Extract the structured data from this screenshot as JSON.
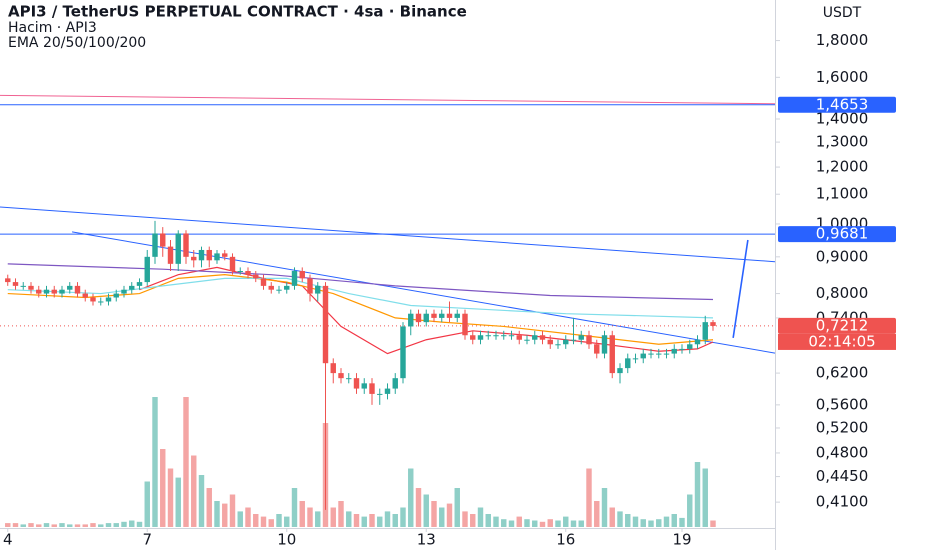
{
  "chart_data": {
    "type": "candlestick",
    "title": "API3 / TetherUS PERPETUAL CONTRACT · 4sa · Binance",
    "subtitle": "Hacim · API3",
    "indicator": "EMA 20/50/100/200",
    "y_axis_label": "USDT",
    "log_scale": true,
    "ylim": [
      0.369,
      2.05
    ],
    "yticks": [
      {
        "value": 1.8,
        "label": "1,8000"
      },
      {
        "value": 1.6,
        "label": "1,6000"
      },
      {
        "value": 1.4,
        "label": "1,4000"
      },
      {
        "value": 1.3,
        "label": "1,3000"
      },
      {
        "value": 1.2,
        "label": "1,2000"
      },
      {
        "value": 1.1,
        "label": "1,1000"
      },
      {
        "value": 1.0,
        "label": "1,0000"
      },
      {
        "value": 0.9,
        "label": "0,9000"
      },
      {
        "value": 0.8,
        "label": "0,8000"
      },
      {
        "value": 0.74,
        "label": "0,7400"
      },
      {
        "value": 0.62,
        "label": "0,6200"
      },
      {
        "value": 0.56,
        "label": "0,5600"
      },
      {
        "value": 0.52,
        "label": "0,5200"
      },
      {
        "value": 0.48,
        "label": "0,4800"
      },
      {
        "value": 0.445,
        "label": "0,4450"
      },
      {
        "value": 0.41,
        "label": "0,4100"
      }
    ],
    "xlim": [
      -1,
      99
    ],
    "xticks": [
      {
        "value": 0,
        "label": "4"
      },
      {
        "value": 18,
        "label": "7"
      },
      {
        "value": 36,
        "label": "10"
      },
      {
        "value": 54,
        "label": "13"
      },
      {
        "value": 72,
        "label": "16"
      },
      {
        "value": 87,
        "label": "19"
      }
    ],
    "up_color": "#26a69a",
    "down_color": "#ef5350",
    "up_volume_color": "#8fcfc7",
    "down_volume_color": "#f4a5a4",
    "candles": {
      "x": [
        0,
        1,
        2,
        3,
        4,
        5,
        6,
        7,
        8,
        9,
        10,
        11,
        12,
        13,
        14,
        15,
        16,
        17,
        18,
        19,
        20,
        21,
        22,
        23,
        24,
        25,
        26,
        27,
        28,
        29,
        30,
        31,
        32,
        33,
        34,
        35,
        36,
        37,
        38,
        39,
        40,
        41,
        42,
        43,
        44,
        45,
        46,
        47,
        48,
        49,
        50,
        51,
        52,
        53,
        54,
        55,
        56,
        57,
        58,
        59,
        60,
        61,
        62,
        63,
        64,
        65,
        66,
        67,
        68,
        69,
        70,
        71,
        72,
        73,
        74,
        75,
        76,
        77,
        78,
        79,
        80,
        81,
        82,
        83,
        84,
        85,
        86,
        87,
        88,
        89,
        90,
        91
      ],
      "open": [
        0.84,
        0.83,
        0.82,
        0.82,
        0.81,
        0.8,
        0.81,
        0.8,
        0.81,
        0.82,
        0.8,
        0.79,
        0.78,
        0.78,
        0.79,
        0.8,
        0.81,
        0.82,
        0.83,
        0.9,
        0.97,
        0.93,
        0.88,
        0.97,
        0.9,
        0.89,
        0.92,
        0.89,
        0.91,
        0.9,
        0.86,
        0.86,
        0.85,
        0.84,
        0.82,
        0.81,
        0.81,
        0.82,
        0.86,
        0.84,
        0.8,
        0.82,
        0.64,
        0.62,
        0.61,
        0.61,
        0.59,
        0.6,
        0.58,
        0.58,
        0.59,
        0.61,
        0.72,
        0.75,
        0.73,
        0.75,
        0.74,
        0.75,
        0.74,
        0.75,
        0.7,
        0.69,
        0.7,
        0.7,
        0.7,
        0.7,
        0.7,
        0.69,
        0.69,
        0.7,
        0.69,
        0.68,
        0.68,
        0.69,
        0.69,
        0.7,
        0.68,
        0.66,
        0.7,
        0.62,
        0.63,
        0.65,
        0.65,
        0.66,
        0.66,
        0.66,
        0.66,
        0.67,
        0.67,
        0.68,
        0.69,
        0.73
      ],
      "high": [
        0.85,
        0.84,
        0.83,
        0.83,
        0.82,
        0.82,
        0.82,
        0.82,
        0.83,
        0.83,
        0.81,
        0.8,
        0.79,
        0.8,
        0.81,
        0.82,
        0.83,
        0.84,
        0.92,
        1.01,
        0.99,
        0.95,
        0.98,
        0.98,
        0.92,
        0.93,
        0.93,
        0.92,
        0.92,
        0.91,
        0.87,
        0.87,
        0.86,
        0.85,
        0.83,
        0.82,
        0.83,
        0.87,
        0.87,
        0.85,
        0.83,
        0.83,
        0.65,
        0.63,
        0.62,
        0.62,
        0.61,
        0.61,
        0.59,
        0.6,
        0.62,
        0.73,
        0.76,
        0.76,
        0.76,
        0.76,
        0.76,
        0.78,
        0.76,
        0.76,
        0.71,
        0.71,
        0.71,
        0.71,
        0.71,
        0.71,
        0.71,
        0.7,
        0.71,
        0.71,
        0.7,
        0.69,
        0.7,
        0.74,
        0.71,
        0.71,
        0.69,
        0.71,
        0.71,
        0.64,
        0.66,
        0.66,
        0.67,
        0.67,
        0.67,
        0.67,
        0.68,
        0.68,
        0.69,
        0.7,
        0.745,
        0.735
      ],
      "low": [
        0.82,
        0.81,
        0.81,
        0.8,
        0.79,
        0.79,
        0.79,
        0.79,
        0.8,
        0.79,
        0.78,
        0.77,
        0.77,
        0.77,
        0.78,
        0.79,
        0.8,
        0.81,
        0.82,
        0.88,
        0.9,
        0.86,
        0.86,
        0.88,
        0.87,
        0.87,
        0.87,
        0.88,
        0.89,
        0.85,
        0.85,
        0.84,
        0.83,
        0.81,
        0.8,
        0.8,
        0.8,
        0.81,
        0.83,
        0.78,
        0.78,
        0.4,
        0.6,
        0.6,
        0.6,
        0.58,
        0.58,
        0.56,
        0.56,
        0.57,
        0.58,
        0.6,
        0.7,
        0.72,
        0.72,
        0.73,
        0.73,
        0.73,
        0.73,
        0.69,
        0.68,
        0.68,
        0.69,
        0.69,
        0.69,
        0.69,
        0.68,
        0.68,
        0.68,
        0.68,
        0.67,
        0.67,
        0.67,
        0.68,
        0.68,
        0.67,
        0.65,
        0.65,
        0.61,
        0.6,
        0.62,
        0.64,
        0.64,
        0.65,
        0.65,
        0.65,
        0.65,
        0.66,
        0.66,
        0.67,
        0.68,
        0.71
      ],
      "close": [
        0.83,
        0.82,
        0.82,
        0.81,
        0.8,
        0.81,
        0.8,
        0.81,
        0.82,
        0.8,
        0.79,
        0.78,
        0.78,
        0.79,
        0.8,
        0.81,
        0.82,
        0.83,
        0.9,
        0.97,
        0.93,
        0.88,
        0.97,
        0.9,
        0.89,
        0.92,
        0.89,
        0.91,
        0.9,
        0.86,
        0.86,
        0.85,
        0.84,
        0.82,
        0.81,
        0.81,
        0.82,
        0.86,
        0.84,
        0.8,
        0.82,
        0.64,
        0.62,
        0.61,
        0.61,
        0.59,
        0.6,
        0.58,
        0.58,
        0.59,
        0.61,
        0.72,
        0.75,
        0.73,
        0.75,
        0.74,
        0.75,
        0.74,
        0.75,
        0.7,
        0.69,
        0.7,
        0.7,
        0.7,
        0.7,
        0.7,
        0.69,
        0.69,
        0.7,
        0.69,
        0.68,
        0.68,
        0.69,
        0.69,
        0.7,
        0.68,
        0.66,
        0.7,
        0.62,
        0.63,
        0.65,
        0.65,
        0.66,
        0.66,
        0.66,
        0.66,
        0.67,
        0.67,
        0.68,
        0.69,
        0.73,
        0.7212
      ],
      "volume": [
        3,
        3,
        2,
        3,
        2,
        3,
        2,
        3,
        2,
        2,
        2,
        3,
        2,
        3,
        3,
        4,
        5,
        4,
        35,
        100,
        60,
        45,
        38,
        100,
        55,
        40,
        30,
        20,
        18,
        25,
        12,
        15,
        10,
        8,
        6,
        10,
        8,
        30,
        20,
        15,
        12,
        80,
        15,
        20,
        12,
        10,
        8,
        10,
        8,
        12,
        10,
        15,
        45,
        30,
        25,
        20,
        15,
        18,
        30,
        12,
        10,
        15,
        10,
        8,
        6,
        5,
        8,
        6,
        5,
        4,
        6,
        5,
        8,
        5,
        5,
        45,
        20,
        30,
        15,
        12,
        10,
        8,
        6,
        5,
        6,
        8,
        10,
        7,
        25,
        50,
        45,
        5
      ]
    },
    "series": [
      {
        "name": "EMA 20",
        "color": "#f23645",
        "x": [
          17,
          22,
          27,
          33,
          38,
          43,
          49,
          54,
          60,
          67,
          77,
          84,
          89,
          91
        ],
        "values": [
          0.81,
          0.85,
          0.87,
          0.84,
          0.82,
          0.72,
          0.66,
          0.69,
          0.71,
          0.7,
          0.68,
          0.665,
          0.67,
          0.685
        ]
      },
      {
        "name": "EMA 50",
        "color": "#ff9800",
        "x": [
          0,
          10,
          17,
          22,
          28,
          36,
          42,
          50,
          56,
          64,
          74,
          84,
          91
        ],
        "values": [
          0.8,
          0.79,
          0.8,
          0.84,
          0.85,
          0.83,
          0.8,
          0.74,
          0.73,
          0.72,
          0.7,
          0.68,
          0.69
        ]
      },
      {
        "name": "EMA 100",
        "color": "#80deea",
        "x": [
          0,
          12,
          20,
          28,
          36,
          44,
          52,
          62,
          72,
          82,
          91
        ],
        "values": [
          0.81,
          0.8,
          0.82,
          0.84,
          0.84,
          0.8,
          0.77,
          0.76,
          0.75,
          0.745,
          0.74
        ]
      },
      {
        "name": "EMA 200",
        "color": "#7e57c2",
        "x": [
          0,
          20,
          34,
          50,
          70,
          91
        ],
        "values": [
          0.88,
          0.865,
          0.85,
          0.82,
          0.795,
          0.785
        ]
      }
    ],
    "drawings": [
      {
        "color": "#2962ff",
        "x": [
          -1,
          99
        ],
        "y": [
          1.056,
          0.886
        ]
      },
      {
        "color": "#2962ff",
        "x": [
          8.3,
          99
        ],
        "y": [
          0.975,
          0.661
        ]
      },
      {
        "color": "#f06292",
        "x": [
          -1,
          99
        ],
        "y": [
          1.51,
          1.47
        ]
      },
      {
        "color": "#2962ff",
        "x": [
          93.6,
          95.5
        ],
        "y": [
          0.694,
          0.95
        ]
      }
    ],
    "price_labels": [
      {
        "value": 1.4653,
        "label": "1,4653",
        "color": "#2962ff"
      },
      {
        "value": 0.9681,
        "label": "0,9681",
        "color": "#2962ff"
      },
      {
        "value": 0.7212,
        "label": "0,7212",
        "color": "#ef5350"
      }
    ],
    "countdown": "02:14:05"
  }
}
